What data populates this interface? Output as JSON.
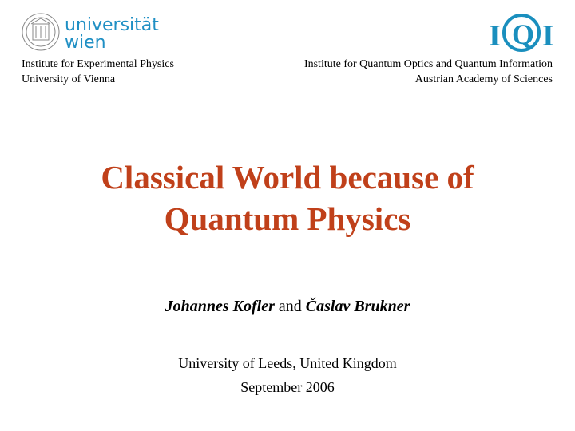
{
  "logos": {
    "left": {
      "text_line1": "universität",
      "text_line2": "wien",
      "color": "#1f8fc4",
      "icon": "university-seal-icon"
    },
    "right": {
      "text": "IQI",
      "color": "#1a8fbe"
    }
  },
  "affiliations": {
    "left": [
      "Institute for Experimental Physics",
      "University of Vienna"
    ],
    "right": [
      "Institute for Quantum Optics and Quantum Information",
      "Austrian Academy of Sciences"
    ]
  },
  "title": [
    "Classical World because of",
    "Quantum Physics"
  ],
  "title_color": "#c0401a",
  "authors": {
    "first": "Johannes Kofler",
    "connector": "and",
    "second": "Časlav Brukner"
  },
  "venue": [
    "University of Leeds, United Kingdom",
    "September 2006"
  ]
}
